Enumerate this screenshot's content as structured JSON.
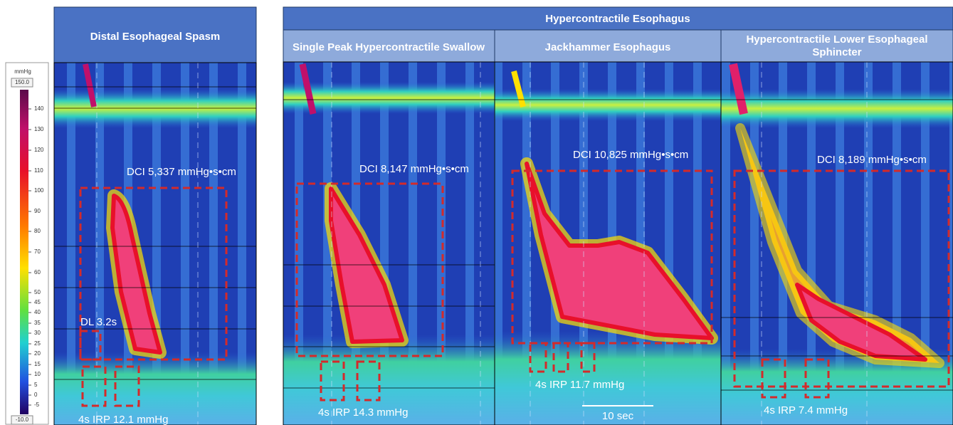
{
  "colorbar": {
    "unit": "mmHg",
    "max": "150.0",
    "min": "-10.0",
    "ticks": [
      "140",
      "130",
      "120",
      "110",
      "100",
      "90",
      "80",
      "70",
      "60",
      "50",
      "45",
      "40",
      "35",
      "30",
      "25",
      "20",
      "15",
      "10",
      "5",
      "0",
      "-5"
    ]
  },
  "left_panel": {
    "title": "Distal Esophageal Spasm",
    "dci": "DCI 5,337 mmHg•s•cm",
    "dl": "DL 3.2s",
    "irp": "4s IRP 12.1 mmHg"
  },
  "group": {
    "title": "Hypercontractile Esophagus",
    "panels": [
      {
        "title": "Single Peak Hypercontractile Swallow",
        "dci": "DCI 8,147 mmHg•s•cm",
        "irp": "4s IRP 14.3 mmHg"
      },
      {
        "title": "Jackhammer Esophagus",
        "dci": "DCI 10,825 mmHg•s•cm",
        "irp": "4s IRP 11.7 mmHg"
      },
      {
        "title": [
          "Hypercontractile Lower Esophageal",
          "Sphincter"
        ],
        "dci": "DCI 8,189 mmHg•s•cm",
        "irp": "4s IRP 7.4 mmHg"
      }
    ]
  },
  "scale_bar": "10 sec"
}
